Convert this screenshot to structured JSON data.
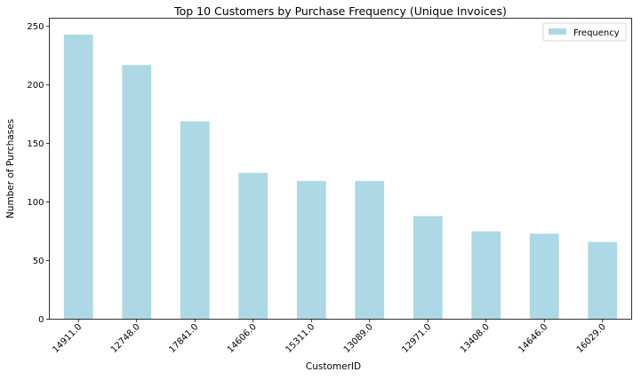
{
  "chart_data": {
    "type": "bar",
    "title": "Top 10 Customers by Purchase Frequency (Unique Invoices)",
    "xlabel": "CustomerID",
    "ylabel": "Number of Purchases",
    "categories": [
      "14911.0",
      "12748.0",
      "17841.0",
      "14606.0",
      "15311.0",
      "13089.0",
      "12971.0",
      "13408.0",
      "14646.0",
      "16029.0"
    ],
    "series": [
      {
        "name": "Frequency",
        "color": "#add8e6",
        "values": [
          243,
          217,
          169,
          125,
          118,
          118,
          88,
          75,
          73,
          66
        ]
      }
    ],
    "ylim": [
      0,
      257
    ],
    "yticks": [
      0,
      50,
      100,
      150,
      200,
      250
    ],
    "legend_position": "top-right",
    "grid": false
  }
}
